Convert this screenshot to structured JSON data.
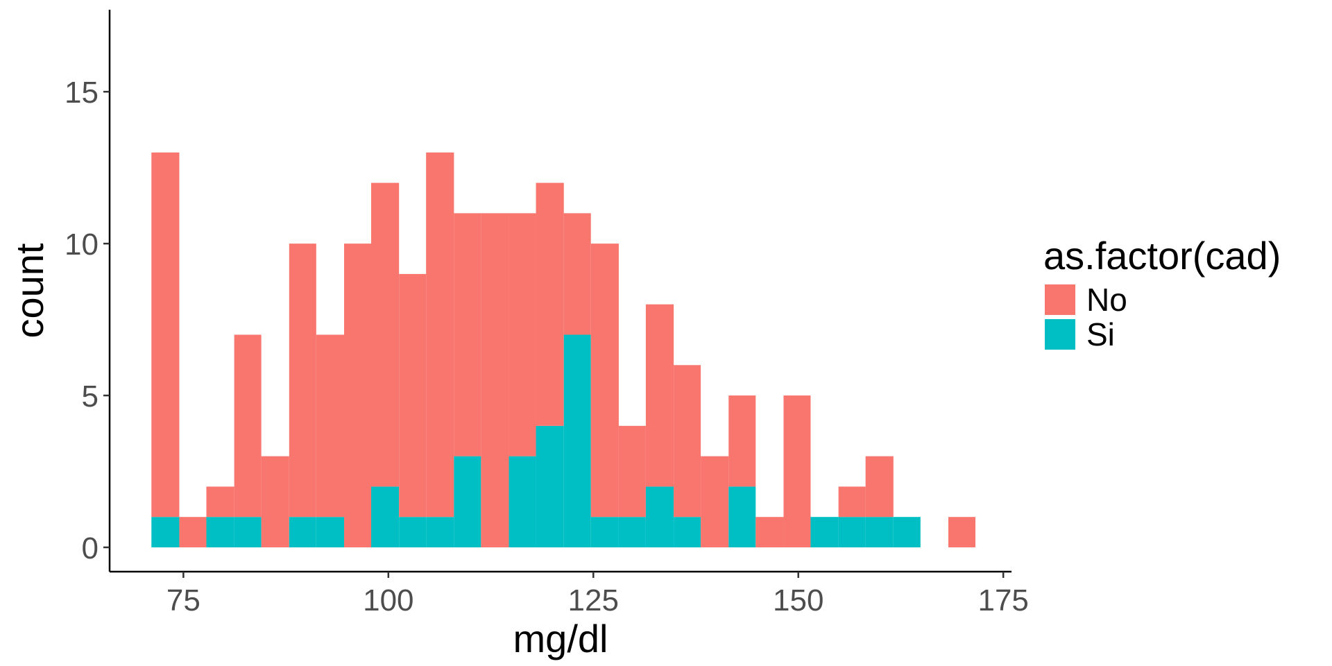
{
  "chart_data": {
    "type": "bar",
    "subtype": "stacked-histogram",
    "xlabel": "mg/dl",
    "ylabel": "count",
    "xlim": [
      66,
      176
    ],
    "ylim": [
      -0.8,
      17.7
    ],
    "x_ticks": [
      75,
      100,
      125,
      150,
      175
    ],
    "y_ticks": [
      0,
      5,
      10,
      15
    ],
    "grid": false,
    "legend": {
      "title": "as.factor(cad)",
      "position": "right"
    },
    "bins": [
      {
        "start": 71.1,
        "end": 74.5
      },
      {
        "start": 74.5,
        "end": 77.8
      },
      {
        "start": 77.8,
        "end": 81.2
      },
      {
        "start": 81.2,
        "end": 84.5
      },
      {
        "start": 84.5,
        "end": 87.9
      },
      {
        "start": 87.9,
        "end": 91.2
      },
      {
        "start": 91.2,
        "end": 94.6
      },
      {
        "start": 94.6,
        "end": 97.9
      },
      {
        "start": 97.9,
        "end": 101.3
      },
      {
        "start": 101.3,
        "end": 104.6
      },
      {
        "start": 104.6,
        "end": 108.0
      },
      {
        "start": 108.0,
        "end": 111.3
      },
      {
        "start": 111.3,
        "end": 114.7
      },
      {
        "start": 114.7,
        "end": 118.0
      },
      {
        "start": 118.0,
        "end": 121.4
      },
      {
        "start": 121.4,
        "end": 124.7
      },
      {
        "start": 124.7,
        "end": 128.1
      },
      {
        "start": 128.1,
        "end": 131.4
      },
      {
        "start": 131.4,
        "end": 134.8
      },
      {
        "start": 134.8,
        "end": 138.1
      },
      {
        "start": 138.1,
        "end": 141.5
      },
      {
        "start": 141.5,
        "end": 144.8
      },
      {
        "start": 144.8,
        "end": 148.2
      },
      {
        "start": 148.2,
        "end": 151.5
      },
      {
        "start": 151.5,
        "end": 154.9
      },
      {
        "start": 154.9,
        "end": 158.2
      },
      {
        "start": 158.2,
        "end": 161.6
      },
      {
        "start": 161.6,
        "end": 164.9
      },
      {
        "start": 164.9,
        "end": 168.3
      },
      {
        "start": 168.3,
        "end": 171.6
      }
    ],
    "series": [
      {
        "name": "No",
        "color": "#F8766D",
        "values": [
          12,
          1,
          1,
          6,
          3,
          9,
          6,
          10,
          10,
          8,
          12,
          8,
          11,
          8,
          8,
          4,
          9,
          3,
          6,
          5,
          3,
          3,
          1,
          5,
          0,
          1,
          2,
          0,
          0,
          1
        ]
      },
      {
        "name": "Si",
        "color": "#00BFC4",
        "values": [
          1,
          0,
          1,
          1,
          0,
          1,
          1,
          0,
          2,
          1,
          1,
          3,
          0,
          3,
          4,
          7,
          1,
          1,
          2,
          1,
          0,
          2,
          0,
          0,
          1,
          1,
          1,
          1,
          0,
          0
        ]
      }
    ]
  }
}
